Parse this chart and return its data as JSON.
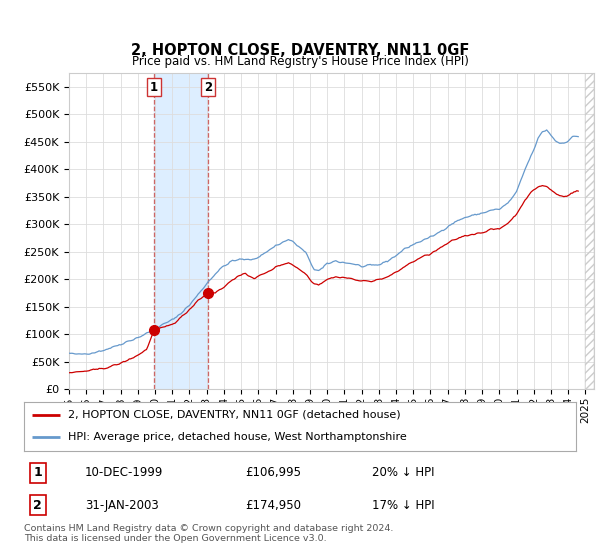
{
  "title": "2, HOPTON CLOSE, DAVENTRY, NN11 0GF",
  "subtitle": "Price paid vs. HM Land Registry's House Price Index (HPI)",
  "hpi_label": "HPI: Average price, detached house, West Northamptonshire",
  "price_label": "2, HOPTON CLOSE, DAVENTRY, NN11 0GF (detached house)",
  "footer": "Contains HM Land Registry data © Crown copyright and database right 2024.\nThis data is licensed under the Open Government Licence v3.0.",
  "transactions": [
    {
      "num": 1,
      "date": "10-DEC-1999",
      "price": 106995,
      "pct": "20%",
      "dir": "↓",
      "year": 1999.94
    },
    {
      "num": 2,
      "date": "31-JAN-2003",
      "price": 174950,
      "pct": "17%",
      "dir": "↓",
      "year": 2003.08
    }
  ],
  "price_color": "#cc0000",
  "hpi_color": "#6699cc",
  "shade_color": "#ddeeff",
  "grid_color": "#dddddd",
  "bg_color": "#ffffff",
  "ylim": [
    0,
    575000
  ],
  "yticks": [
    0,
    50000,
    100000,
    150000,
    200000,
    250000,
    300000,
    350000,
    400000,
    450000,
    500000,
    550000
  ],
  "xlim_start": 1995.0,
  "xlim_end": 2025.5,
  "shade_x1": 1999.94,
  "shade_x2": 2003.08
}
